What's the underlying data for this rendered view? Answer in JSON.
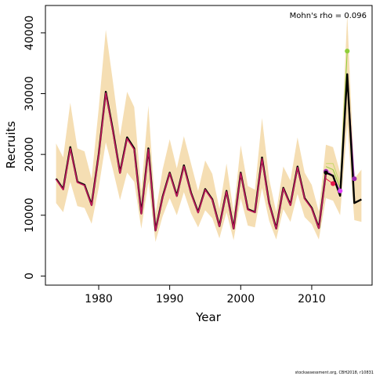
{
  "chart_data": {
    "type": "line",
    "xlabel": "Year",
    "ylabel": "Recruits",
    "annotation": "Mohn's rho = 0.096",
    "xlim": [
      1972.5,
      2018.5
    ],
    "ylim": [
      -1500,
      44500
    ],
    "x_ticks": [
      1980,
      1990,
      2000,
      2010
    ],
    "y_ticks": [
      0,
      10000,
      20000,
      30000,
      40000
    ],
    "colors": {
      "band": "#f5deb3",
      "main": "#000000",
      "overlay": "#c2185b",
      "peel_green": "#8fce3a",
      "peel_lime": "#c7d86a",
      "peel_red": "#e6194b",
      "peel_magenta": "#e040fb",
      "peel_purple": "#9c27b0",
      "peel_orange": "#ff8c00"
    },
    "series": [
      {
        "role": "estimate",
        "x": [
          1974,
          1975,
          1976,
          1977,
          1978,
          1979,
          1980,
          1981,
          1982,
          1983,
          1984,
          1985,
          1986,
          1987,
          1988,
          1989,
          1990,
          1991,
          1992,
          1993,
          1994,
          1995,
          1996,
          1997,
          1998,
          1999,
          2000,
          2001,
          2002,
          2003,
          2004,
          2005,
          2006,
          2007,
          2008,
          2009,
          2010,
          2011,
          2012,
          2013,
          2014,
          2015,
          2016,
          2017
        ],
        "y": [
          16000,
          14300,
          21200,
          15500,
          15000,
          11700,
          20000,
          30300,
          24000,
          17000,
          22800,
          21000,
          10300,
          21000,
          7500,
          13000,
          17000,
          13200,
          18200,
          13700,
          10500,
          14300,
          12600,
          8200,
          14000,
          7800,
          17000,
          11000,
          10500,
          19500,
          12000,
          7800,
          14500,
          11700,
          18000,
          12800,
          11200,
          7900,
          17000,
          16500,
          13200,
          33200,
          12000,
          12600
        ]
      },
      {
        "role": "overlay",
        "x": [
          1974,
          1975,
          1976,
          1977,
          1978,
          1979,
          1980,
          1981,
          1982,
          1983,
          1984,
          1985,
          1986,
          1987,
          1988,
          1989,
          1990,
          1991,
          1992,
          1993,
          1994,
          1995,
          1996,
          1997,
          1998,
          1999,
          2000,
          2001,
          2002,
          2003,
          2004,
          2005,
          2006,
          2007,
          2008,
          2009,
          2010,
          2011,
          2012
        ],
        "y": [
          15900,
          14200,
          21000,
          15400,
          14900,
          11600,
          19900,
          30100,
          23800,
          16900,
          22600,
          20800,
          10200,
          20800,
          7450,
          12900,
          16900,
          13100,
          18050,
          13600,
          10400,
          14200,
          12500,
          8150,
          13900,
          7750,
          16900,
          10900,
          10450,
          19300,
          11900,
          7750,
          14400,
          11600,
          17850,
          12700,
          11100,
          7850,
          16800
        ]
      },
      {
        "role": "lower_ci",
        "x": [
          1974,
          1975,
          1976,
          1977,
          1978,
          1979,
          1980,
          1981,
          1982,
          1983,
          1984,
          1985,
          1986,
          1987,
          1988,
          1989,
          1990,
          1991,
          1992,
          1993,
          1994,
          1995,
          1996,
          1997,
          1998,
          1999,
          2000,
          2001,
          2002,
          2003,
          2004,
          2005,
          2006,
          2007,
          2008,
          2009,
          2010,
          2011,
          2012,
          2013,
          2014,
          2015,
          2016,
          2017
        ],
        "y": [
          12000,
          10500,
          15500,
          11500,
          11200,
          8600,
          14500,
          22000,
          17500,
          12500,
          17000,
          15500,
          7800,
          15500,
          5600,
          9800,
          12800,
          10000,
          13800,
          10300,
          8000,
          10800,
          9500,
          6200,
          10500,
          5900,
          12800,
          8300,
          8000,
          14500,
          9100,
          6000,
          11000,
          8900,
          13500,
          9700,
          8500,
          6000,
          12800,
          12400,
          10000,
          25000,
          9200,
          8900
        ]
      },
      {
        "role": "upper_ci",
        "x": [
          1974,
          1975,
          1976,
          1977,
          1978,
          1979,
          1980,
          1981,
          1982,
          1983,
          1984,
          1985,
          1986,
          1987,
          1988,
          1989,
          1990,
          1991,
          1992,
          1993,
          1994,
          1995,
          1996,
          1997,
          1998,
          1999,
          2000,
          2001,
          2002,
          2003,
          2004,
          2005,
          2006,
          2007,
          2008,
          2009,
          2010,
          2011,
          2012,
          2013,
          2014,
          2015,
          2016,
          2017
        ],
        "y": [
          21800,
          19500,
          28500,
          21000,
          20500,
          16000,
          27500,
          40500,
          32000,
          23000,
          30300,
          27800,
          14000,
          28000,
          10200,
          17500,
          22500,
          17700,
          23000,
          18500,
          14000,
          19000,
          16800,
          11000,
          18500,
          10500,
          21500,
          14800,
          14200,
          26000,
          16000,
          10500,
          18000,
          15700,
          22800,
          17000,
          15000,
          10600,
          21600,
          21200,
          17000,
          43000,
          16000,
          17500
        ]
      },
      {
        "role": "peel",
        "x": [
          2012,
          2013
        ],
        "y": [
          16000,
          15200
        ]
      },
      {
        "role": "peel",
        "x": [
          2012,
          2013,
          2014
        ],
        "y": [
          17500,
          16500,
          14000
        ]
      },
      {
        "role": "peel",
        "x": [
          2012,
          2013,
          2014
        ],
        "y": [
          18500,
          18500,
          15200
        ]
      },
      {
        "role": "peel",
        "x": [
          2012,
          2013,
          2014,
          2015
        ],
        "y": [
          18000,
          17500,
          14500,
          37000
        ]
      },
      {
        "role": "peel",
        "x": [
          2012,
          2013,
          2014,
          2015,
          2016
        ],
        "y": [
          17200,
          16300,
          13500,
          33000,
          16000
        ]
      }
    ],
    "peel_endpoints": [
      {
        "x": 2013,
        "y": 15200,
        "color": "#e6194b"
      },
      {
        "x": 2014,
        "y": 14000,
        "color": "#e040fb"
      },
      {
        "x": 2015,
        "y": 37000,
        "color": "#8fce3a"
      },
      {
        "x": 2016,
        "y": 16000,
        "color": "#9c27b0"
      },
      {
        "x": 2012,
        "y": 17200,
        "color": "#9c27b0"
      }
    ]
  },
  "footer": "stockassessment.org, CBH2018, r10831"
}
